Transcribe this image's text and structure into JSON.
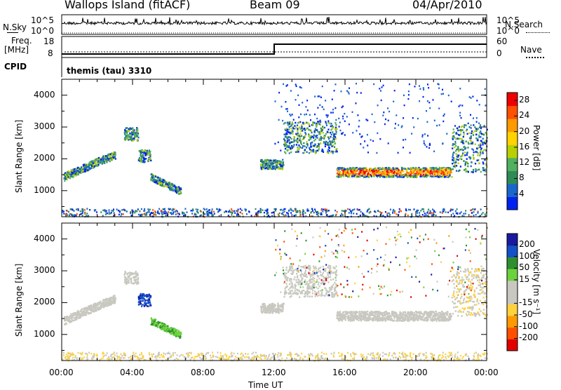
{
  "header": {
    "station": "Wallops Island (fitACF)",
    "beam": "Beam 09",
    "date": "04/Apr/2010"
  },
  "top_panels": {
    "nsky_label": "N.Sky",
    "nsky_ticks": [
      "10^5",
      "10^0"
    ],
    "nsearch_label": "N.Search",
    "nsearch_ticks": [
      "10^5",
      "10^0"
    ],
    "freq_label_1": "Freq.",
    "freq_label_2": "[MHz]",
    "freq_ticks": [
      "18",
      "8"
    ],
    "nave_label": "Nave",
    "nave_ticks": [
      "60",
      "0"
    ],
    "cpid_label": "CPID",
    "cpid_value": "themis (tau) 3310"
  },
  "chart_data": [
    {
      "type": "heatmap",
      "name": "power",
      "ylabel": "Slant Range [km]",
      "xlabel": "Time UT",
      "x_ticks": [
        "00:00",
        "04:00",
        "08:00",
        "12:00",
        "16:00",
        "20:00",
        "00:00"
      ],
      "xlim_hours": [
        0,
        24
      ],
      "y_ticks": [
        "1000",
        "2000",
        "3000",
        "4000"
      ],
      "ylim": [
        180,
        4500
      ],
      "colorbar": {
        "label": "Power [dB]",
        "ticks": [
          "4",
          "8",
          "12",
          "16",
          "20",
          "24",
          "28"
        ],
        "range": [
          0,
          30
        ]
      },
      "features": [
        {
          "t0": 0.1,
          "t1": 1.5,
          "r0": 1450,
          "r1": 1800
        },
        {
          "t0": 1.5,
          "t1": 3.0,
          "r0": 1800,
          "r1": 2150
        },
        {
          "t0": 3.5,
          "t1": 4.3,
          "r0": 2600,
          "r1": 3000
        },
        {
          "t0": 4.3,
          "t1": 5.0,
          "r0": 1900,
          "r1": 2300
        },
        {
          "t0": 5.0,
          "t1": 6.7,
          "r0": 1000,
          "r1": 1450
        },
        {
          "t0": 11.2,
          "t1": 12.5,
          "r0": 1700,
          "r1": 2000
        },
        {
          "t0": 12.5,
          "t1": 15.5,
          "r0": 2200,
          "r1": 3200
        },
        {
          "t0": 15.5,
          "t1": 22.0,
          "r0": 1450,
          "r1": 1750
        },
        {
          "t0": 22.0,
          "t1": 24.0,
          "r0": 1600,
          "r1": 3100
        }
      ]
    },
    {
      "type": "heatmap",
      "name": "velocity",
      "ylabel": "Slant Range [km]",
      "xlabel": "Time UT",
      "x_ticks": [
        "00:00",
        "04:00",
        "08:00",
        "12:00",
        "16:00",
        "20:00",
        "00:00"
      ],
      "xlim_hours": [
        0,
        24
      ],
      "y_ticks": [
        "1000",
        "2000",
        "3000",
        "4000"
      ],
      "ylim": [
        180,
        4500
      ],
      "colorbar": {
        "label": "Velocity [m s⁻¹]",
        "ticks": [
          "200",
          "100",
          "50",
          "15",
          "-15",
          "-50",
          "-100",
          "-200"
        ],
        "range": [
          -250,
          250
        ]
      }
    }
  ],
  "colors": {
    "power_scale": [
      "#0022ee",
      "#1a66cc",
      "#2e8b57",
      "#52b060",
      "#b8d000",
      "#ffd200",
      "#ff9900",
      "#ff5000",
      "#ee0000"
    ],
    "velocity_scale": [
      "#1a1aa0",
      "#1450c8",
      "#2f8f2f",
      "#6cd23c",
      "#c8c8c0",
      "#c8c8c0",
      "#ffd23c",
      "#ff9a00",
      "#ff5000",
      "#e00000"
    ]
  }
}
